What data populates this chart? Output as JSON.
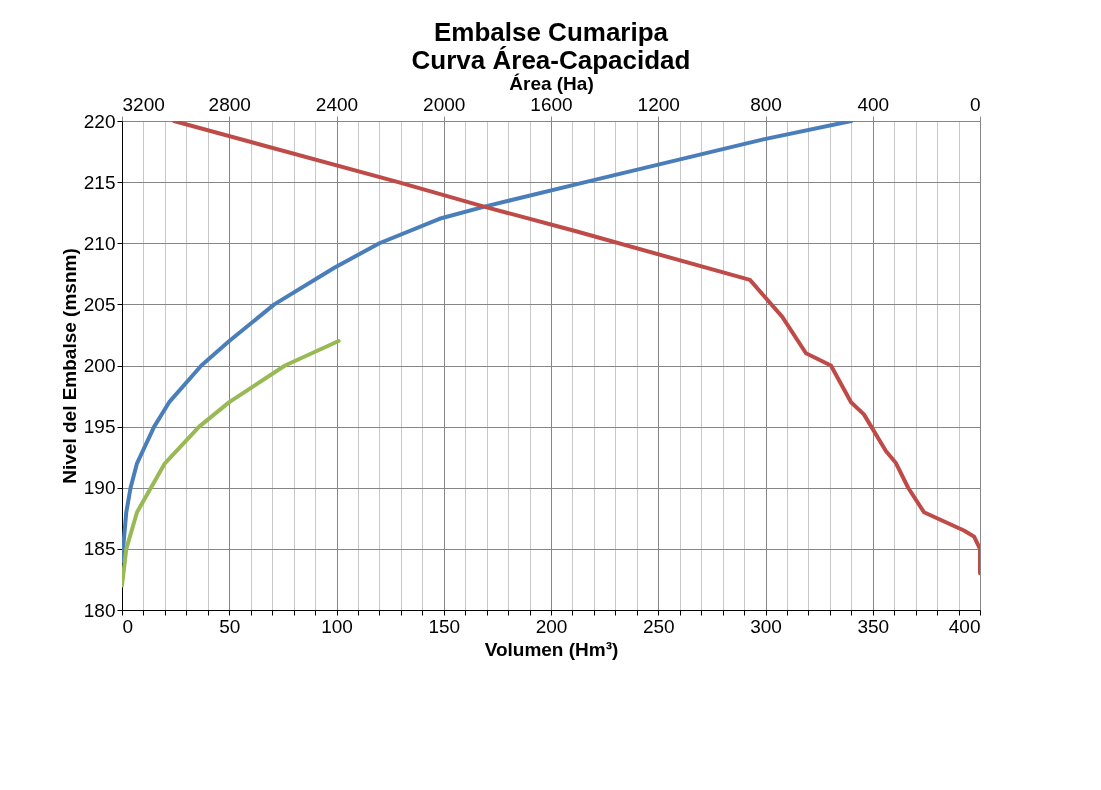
{
  "chart_data": {
    "type": "line",
    "title": "Embalse Cumaripa\nCurva Área-Capacidad",
    "xlabel": "Volumen (Hm³)",
    "ylabel": "Nivel del Embalse (msnm)",
    "x2label": "Área (Ha)",
    "xlim": [
      0,
      400
    ],
    "xticks": [
      0,
      {
        "value": 10,
        "label": null
      },
      {
        "value": 20,
        "label": null
      },
      {
        "value": 30,
        "label": null
      },
      {
        "value": 40,
        "label": null
      },
      50,
      {
        "value": 60,
        "label": null
      },
      {
        "value": 70,
        "label": null
      },
      {
        "value": 80,
        "label": null
      },
      {
        "value": 90,
        "label": null
      },
      100,
      {
        "value": 110,
        "label": null
      },
      {
        "value": 120,
        "label": null
      },
      {
        "value": 130,
        "label": null
      },
      {
        "value": 140,
        "label": null
      },
      150,
      {
        "value": 160,
        "label": null
      },
      {
        "value": 170,
        "label": null
      },
      {
        "value": 180,
        "label": null
      },
      {
        "value": 190,
        "label": null
      },
      200,
      {
        "value": 210,
        "label": null
      },
      {
        "value": 220,
        "label": null
      },
      {
        "value": 230,
        "label": null
      },
      {
        "value": 240,
        "label": null
      },
      250,
      {
        "value": 260,
        "label": null
      },
      {
        "value": 270,
        "label": null
      },
      {
        "value": 280,
        "label": null
      },
      {
        "value": 290,
        "label": null
      },
      300,
      {
        "value": 310,
        "label": null
      },
      {
        "value": 320,
        "label": null
      },
      {
        "value": 330,
        "label": null
      },
      {
        "value": 340,
        "label": null
      },
      350,
      {
        "value": 360,
        "label": null
      },
      {
        "value": 370,
        "label": null
      },
      {
        "value": 380,
        "label": null
      },
      {
        "value": 390,
        "label": null
      },
      400
    ],
    "x2lim": [
      3200,
      0
    ],
    "x2ticks": [
      3200,
      2800,
      2400,
      2000,
      1600,
      1200,
      800,
      400,
      0
    ],
    "ylim": [
      180,
      220
    ],
    "yticks": [
      180,
      185,
      190,
      195,
      200,
      205,
      210,
      215,
      220
    ],
    "grid": true,
    "marker": "none",
    "line_style": "solid",
    "series": [
      {
        "color": "#4a7ebb",
        "x": [
          0,
          0.5,
          2,
          4,
          7,
          15,
          22,
          37,
          50,
          71,
          99,
          120,
          148,
          169,
          216,
          299,
          340
        ],
        "values": [
          184,
          185,
          188,
          190,
          192,
          195,
          197,
          200,
          202,
          205,
          208,
          210,
          212,
          213,
          215,
          218.5,
          220
        ]
      },
      {
        "color": "#be4b48",
        "axis": "x2",
        "x": [
          0,
          0,
          22,
          60,
          209,
          268,
          313,
          351,
          433,
          481,
          556,
          649,
          738,
          858,
          1510,
          1850,
          2170,
          3006
        ],
        "values": [
          183,
          185,
          186,
          186.5,
          188,
          190,
          192,
          193,
          196,
          197,
          200,
          201,
          204,
          207,
          211,
          213,
          215,
          220
        ]
      },
      {
        "color": "#98b954",
        "x": [
          0,
          2,
          7,
          13.5,
          20,
          36,
          50,
          76,
          101
        ],
        "values": [
          182,
          185,
          188,
          190,
          192,
          195,
          197,
          200,
          202
        ]
      }
    ]
  }
}
